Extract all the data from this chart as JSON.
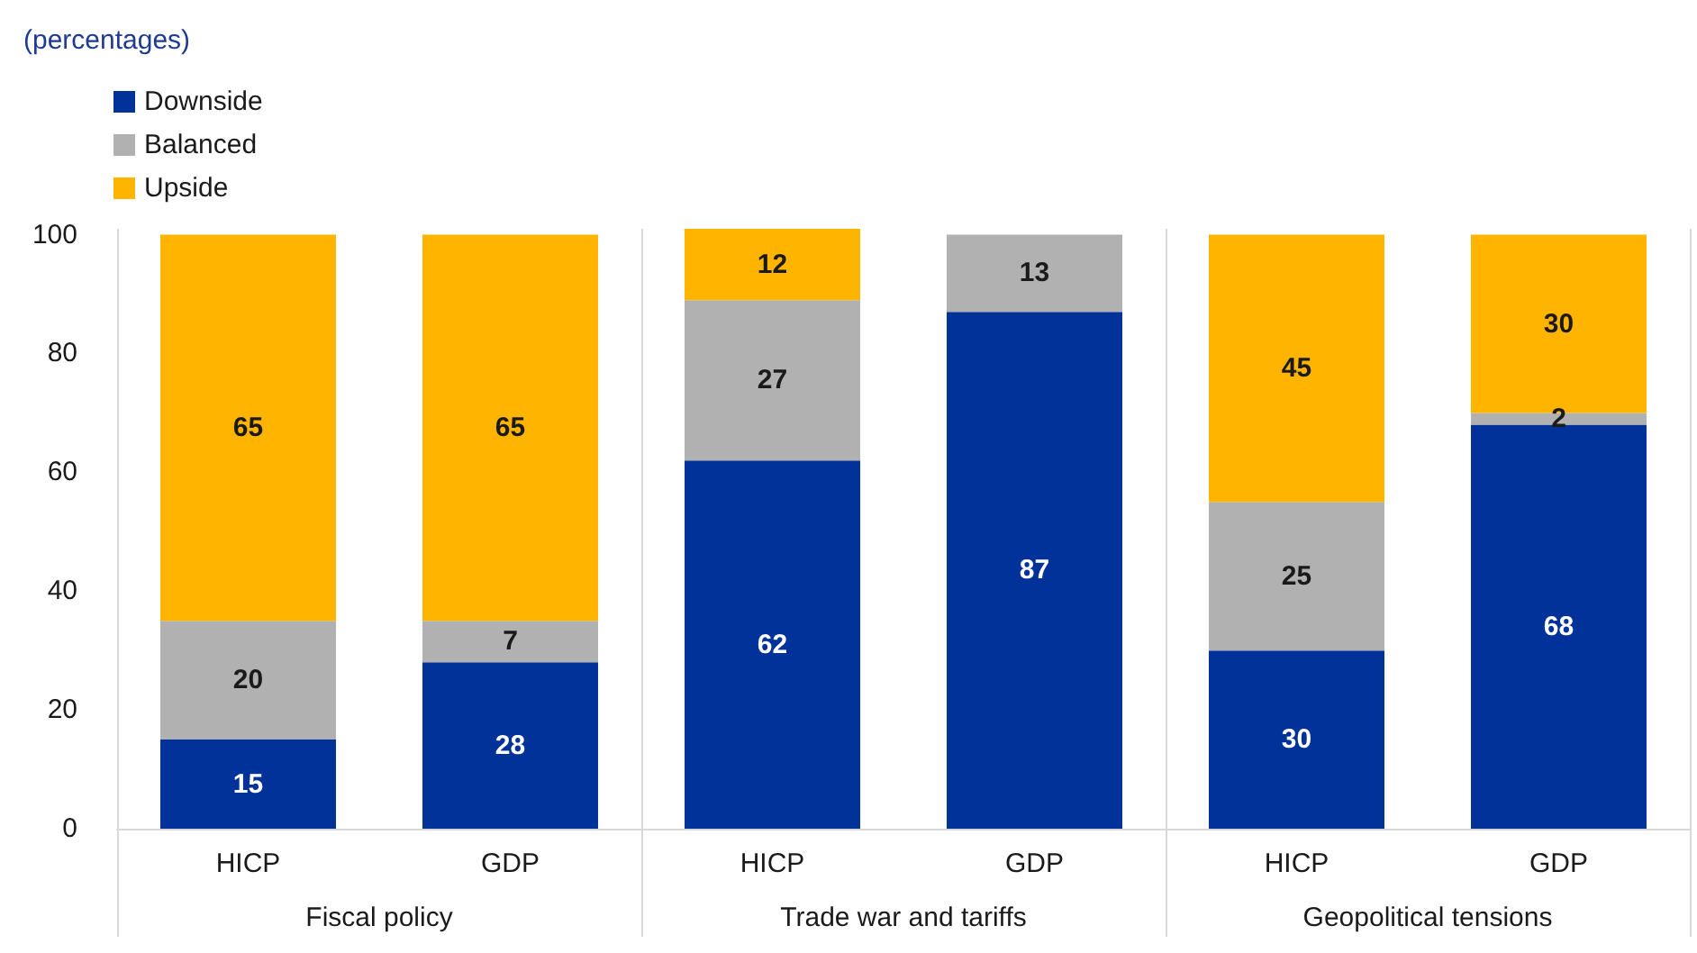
{
  "chart_data": {
    "type": "bar",
    "stacked": true,
    "categories": [
      "HICP",
      "GDP",
      "HICP",
      "GDP",
      "HICP",
      "GDP"
    ],
    "annotations": [
      "(percentages)",
      "Fiscal policy",
      "Trade war and tariffs",
      "Geopolitical tensions"
    ],
    "series": [
      {
        "name": "Downside",
        "color": "#003299",
        "values": [
          15,
          28,
          62,
          87,
          30,
          68
        ],
        "value_labels": [
          "15",
          "28",
          "62",
          "87",
          "30",
          "68"
        ]
      },
      {
        "name": "Balanced",
        "color": "#b1b1b1",
        "values": [
          20,
          7,
          27,
          13,
          25,
          2
        ],
        "value_labels": [
          "20",
          "7",
          "27",
          "13",
          "25",
          "2"
        ]
      },
      {
        "name": "Upside",
        "color": "#ffb400",
        "values": [
          65,
          65,
          12,
          0,
          45,
          30
        ],
        "value_labels": [
          "65",
          "65",
          "12",
          null,
          "45",
          "30"
        ]
      }
    ],
    "ylim": [
      0,
      101
    ],
    "yticks": [
      0,
      20,
      40,
      60,
      80,
      100
    ],
    "grid": false,
    "legend": "top left"
  }
}
